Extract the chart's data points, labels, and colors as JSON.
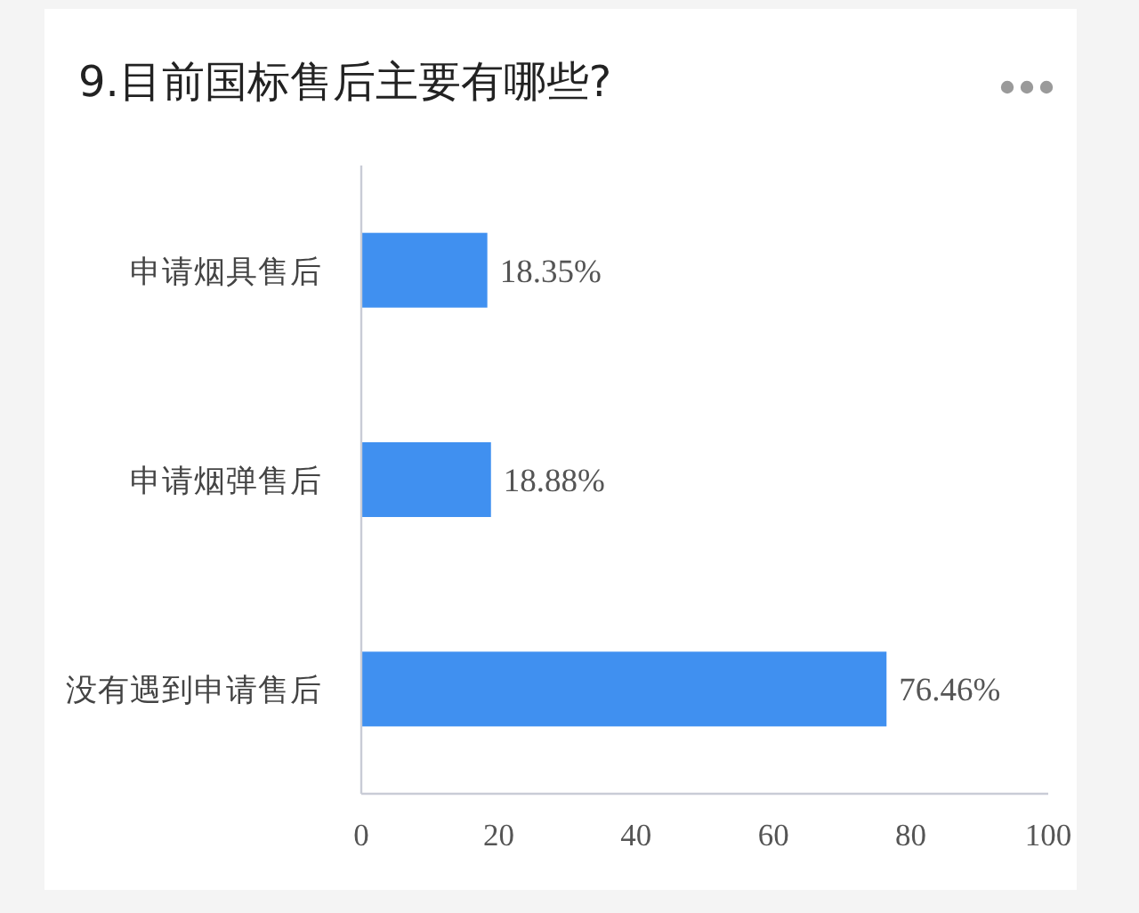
{
  "chart_data": {
    "type": "bar",
    "orientation": "horizontal",
    "title": "9.目前国标售后主要有哪些?",
    "categories": [
      "申请烟具售后",
      "申请烟弹售后",
      "没有遇到申请售后"
    ],
    "values": [
      18.35,
      18.88,
      76.46
    ],
    "value_labels": [
      "18.35%",
      "18.88%",
      "76.46%"
    ],
    "color": "#4090f0",
    "xlim": [
      0,
      100
    ],
    "xticks": [
      0,
      20,
      40,
      60,
      80,
      100
    ]
  }
}
